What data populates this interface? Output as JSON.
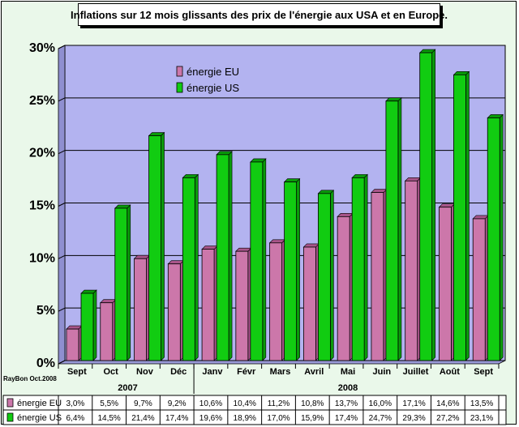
{
  "colors": {
    "eu": "#cc77aa",
    "us": "#11cc11",
    "plot_bg": "#b3b3f0",
    "frame_bg": "#eaf8ea"
  },
  "credit": "RayBon Oct.2008",
  "chart_data": {
    "type": "bar",
    "title": "Inflations sur 12 mois glissants des prix de l'énergie aux USA et en Europe.",
    "categories": [
      "Sept",
      "Oct",
      "Nov",
      "Déc",
      "Janv",
      "Févr",
      "Mars",
      "Avril",
      "Mai",
      "Juin",
      "Juillet",
      "Août",
      "Sept"
    ],
    "years": [
      {
        "label": "2007",
        "first": 0,
        "last": 3
      },
      {
        "label": "2008",
        "first": 4,
        "last": 12
      }
    ],
    "series": [
      {
        "name": "énergie EU",
        "values": [
          3.0,
          5.5,
          9.7,
          9.2,
          10.6,
          10.4,
          11.2,
          10.8,
          13.7,
          16.0,
          17.1,
          14.6,
          13.5
        ],
        "labels": [
          "3,0%",
          "5,5%",
          "9,7%",
          "9,2%",
          "10,6%",
          "10,4%",
          "11,2%",
          "10,8%",
          "13,7%",
          "16,0%",
          "17,1%",
          "14,6%",
          "13,5%"
        ]
      },
      {
        "name": "énergie US",
        "values": [
          6.4,
          14.5,
          21.4,
          17.4,
          19.6,
          18.9,
          17.0,
          15.9,
          17.4,
          24.7,
          29.3,
          27.2,
          23.1
        ],
        "labels": [
          "6,4%",
          "14,5%",
          "21,4%",
          "17,4%",
          "19,6%",
          "18,9%",
          "17,0%",
          "15,9%",
          "17,4%",
          "24,7%",
          "29,3%",
          "27,2%",
          "23,1%"
        ]
      }
    ],
    "ylim": [
      0,
      30
    ],
    "yticks": [
      0,
      5,
      10,
      15,
      20,
      25,
      30
    ],
    "ytick_labels": [
      "0%",
      "5%",
      "10%",
      "15%",
      "20%",
      "25%",
      "30%"
    ],
    "grid": true,
    "legend": "top-left inside plot",
    "data_table": true
  }
}
